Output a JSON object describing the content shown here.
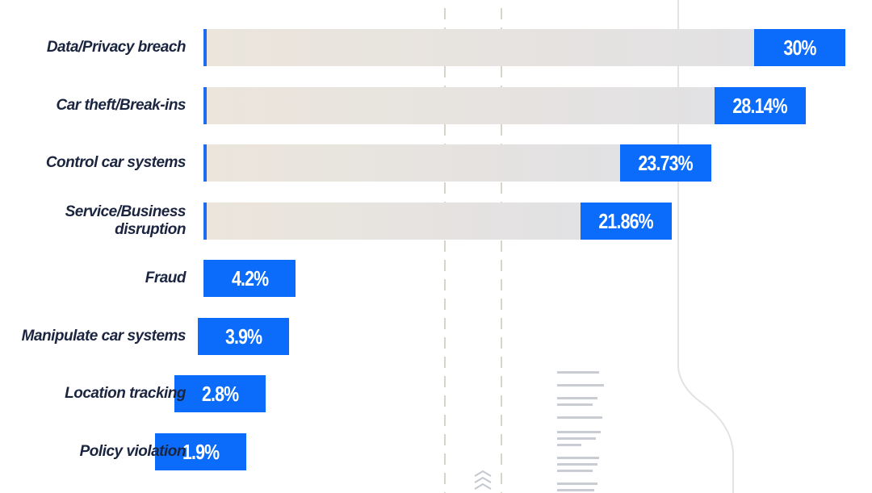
{
  "chart_data": {
    "type": "bar",
    "orientation": "horizontal",
    "categories": [
      "Data/Privacy breach",
      "Car theft/Break-ins",
      "Control car systems",
      "Service/Business disruption",
      "Fraud",
      "Manipulate car systems",
      "Location tracking",
      "Policy violation"
    ],
    "values": [
      30,
      28.14,
      23.73,
      21.86,
      4.2,
      3.9,
      2.8,
      1.9
    ],
    "value_labels": [
      "30%",
      "28.14%",
      "23.73%",
      "21.86%",
      "4.2%",
      "3.9%",
      "2.8%",
      "1.9%"
    ],
    "unit": "%",
    "xlim": [
      0,
      30
    ],
    "grid": false,
    "legend": "none"
  },
  "colors": {
    "value_box": "#0b6cfb",
    "marker": "#1f6bf0",
    "track_start": "#ebe5dc",
    "track_end": "#e2e1e3",
    "label_text": "#1b2540"
  }
}
